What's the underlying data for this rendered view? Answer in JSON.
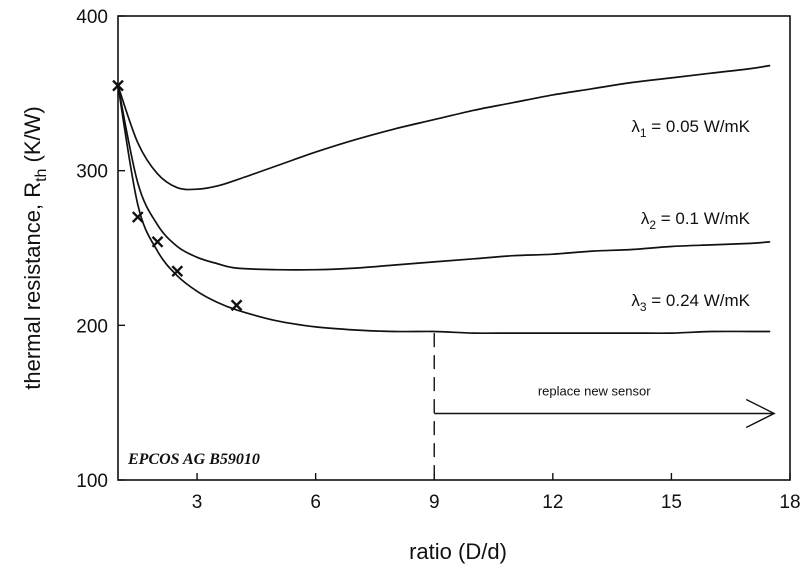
{
  "chart_data": {
    "type": "line",
    "xlabel": "ratio (D/d)",
    "ylabel": {
      "main": "thermal resistance, R",
      "sub": "th",
      "unit": " (K/W)"
    },
    "xlim": [
      1,
      18
    ],
    "ylim": [
      100,
      400
    ],
    "x_ticks": [
      3,
      6,
      9,
      12,
      15,
      18
    ],
    "y_ticks": [
      100,
      200,
      300,
      400
    ],
    "grid": false,
    "series": [
      {
        "label_symbol": "λ",
        "label_sub": "1",
        "label_rest": " = 0.05 W/mK",
        "x": [
          1,
          1.5,
          2,
          2.5,
          3,
          3.5,
          4,
          5,
          6,
          7,
          8,
          9,
          10,
          11,
          12,
          13,
          14,
          15,
          16,
          17,
          17.5
        ],
        "y": [
          355,
          318,
          298,
          289,
          288,
          290,
          294,
          303,
          312,
          320,
          327,
          333,
          339,
          344,
          349,
          353,
          357,
          360,
          363,
          366,
          368
        ]
      },
      {
        "label_symbol": "λ",
        "label_sub": "2",
        "label_rest": " = 0.1 W/mK",
        "x": [
          1,
          1.5,
          2,
          2.5,
          3,
          3.5,
          4,
          5,
          6,
          7,
          8,
          9,
          10,
          11,
          12,
          13,
          14,
          15,
          16,
          17,
          17.5
        ],
        "y": [
          355,
          292,
          265,
          251,
          244,
          240,
          237,
          236,
          236,
          237,
          239,
          241,
          243,
          245,
          246,
          248,
          249,
          251,
          252,
          253,
          254
        ]
      },
      {
        "label_symbol": "λ",
        "label_sub": "3",
        "label_rest": " = 0.24 W/mK",
        "x": [
          1,
          1.5,
          2,
          2.5,
          3,
          3.5,
          4,
          5,
          6,
          7,
          8,
          9,
          10,
          11,
          12,
          13,
          14,
          15,
          16,
          17,
          17.5
        ],
        "y": [
          355,
          278,
          248,
          232,
          222,
          215,
          210,
          203,
          199,
          197,
          196,
          196,
          195,
          195,
          195,
          195,
          195,
          195,
          196,
          196,
          196
        ]
      }
    ],
    "measured_points": {
      "marker": "x",
      "x": [
        1,
        1.5,
        2,
        2.5,
        4
      ],
      "y": [
        355,
        270,
        254,
        235,
        213
      ]
    },
    "annotations": {
      "replace_text": "replace new sensor",
      "replace_x_start": 9,
      "replace_x_end": 17.6,
      "replace_y": 143,
      "dashed_line_x": 9,
      "dashed_line_y_top": 195,
      "credit": "EPCOS AG B59010"
    }
  }
}
